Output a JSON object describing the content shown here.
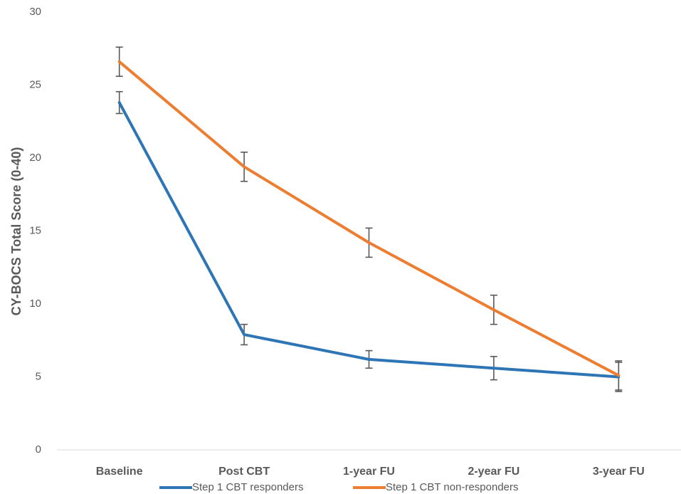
{
  "chart_data": {
    "type": "line",
    "title": "",
    "xlabel": "",
    "ylabel": "CY-BOCS Total Score (0-40)",
    "categories": [
      "Baseline",
      "Post CBT",
      "1-year FU",
      "2-year FU",
      "3-year FU"
    ],
    "yticks": [
      "0",
      "5",
      "10",
      "15",
      "20",
      "25",
      "30"
    ],
    "ylim": [
      0,
      30
    ],
    "grid": false,
    "legend": "bottom",
    "series": [
      {
        "name": "Step 1 CBT responders",
        "color": "#2E75B6",
        "values": [
          23.8,
          7.9,
          6.2,
          5.6,
          5.0
        ],
        "error": [
          0.75,
          0.7,
          0.6,
          0.8,
          1.0
        ]
      },
      {
        "name": "Step 1 CBT non-responders",
        "color": "#ED7D31",
        "values": [
          26.6,
          19.4,
          14.2,
          9.6,
          5.1
        ],
        "error": [
          1.0,
          1.0,
          1.0,
          1.0,
          1.0
        ]
      }
    ]
  }
}
